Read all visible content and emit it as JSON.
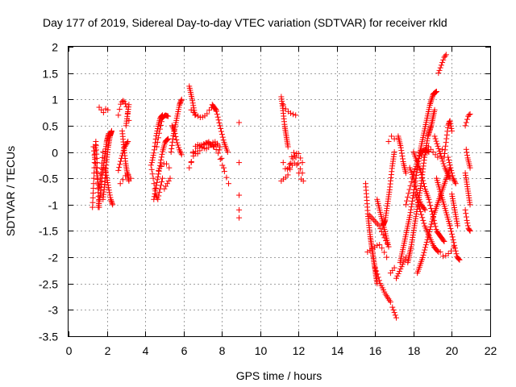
{
  "chart_data": {
    "type": "scatter",
    "title": "Day 177 of 2019, Sidereal Day-to-day VTEC variation (SDTVAR) for receiver rkld",
    "xlabel": "GPS time / hours",
    "ylabel": "SDTVAR / TECUs",
    "xlim": [
      0,
      22
    ],
    "ylim": [
      -3.5,
      2
    ],
    "xticks": [
      "0",
      "2",
      "4",
      "6",
      "8",
      "10",
      "12",
      "14",
      "16",
      "18",
      "20",
      "22"
    ],
    "yticks": [
      "2",
      "1.5",
      "1",
      "0.5",
      "0",
      "-0.5",
      "-1",
      "-1.5",
      "-2",
      "-2.5",
      "-3",
      "-3.5"
    ],
    "grid": true,
    "marker": "+",
    "marker_color": "#ff0000",
    "segments": [
      {
        "x0": 1.25,
        "x1": 1.6,
        "y": [
          -1.05,
          -0.6,
          -0.1,
          0.2,
          -0.2,
          -0.7,
          -1.05
        ]
      },
      {
        "x0": 1.3,
        "x1": 1.8,
        "y": [
          0.1,
          -0.2,
          -0.5,
          -0.7,
          -0.4,
          0.0
        ]
      },
      {
        "x0": 1.55,
        "x1": 2.1,
        "y": [
          -1.05,
          -0.8,
          -0.4,
          -0.1,
          0.2,
          0.35
        ]
      },
      {
        "x0": 1.6,
        "x1": 2.05,
        "y": [
          0.85,
          0.8,
          0.75,
          0.82,
          0.8
        ]
      },
      {
        "x0": 1.8,
        "x1": 2.25,
        "y": [
          -0.9,
          -0.6,
          -0.2,
          0.1,
          0.3,
          0.4
        ]
      },
      {
        "x0": 1.9,
        "x1": 2.3,
        "y": [
          -0.3,
          -0.5,
          -0.7,
          -0.9,
          -1.0
        ]
      },
      {
        "x0": 2.6,
        "x1": 3.15,
        "y": [
          0.7,
          0.9,
          0.98,
          0.95,
          0.85,
          0.6
        ]
      },
      {
        "x0": 2.6,
        "x1": 3.1,
        "y": [
          -0.35,
          -0.1,
          0.1,
          0.2
        ]
      },
      {
        "x0": 2.7,
        "x1": 3.25,
        "y": [
          -0.6,
          -0.5,
          -0.4,
          -0.5
        ]
      },
      {
        "x0": 2.8,
        "x1": 3.15,
        "y": [
          0.4,
          0.1,
          -0.2,
          -0.4,
          -0.55
        ]
      },
      {
        "x0": 3.0,
        "x1": 3.15,
        "y": [
          0.5,
          0.7,
          0.9
        ]
      },
      {
        "x0": 4.3,
        "x1": 4.9,
        "y": [
          -0.25,
          -0.5,
          -0.8,
          -0.9,
          -0.7,
          -0.5
        ]
      },
      {
        "x0": 4.35,
        "x1": 4.9,
        "y": [
          -0.2,
          0.0,
          0.3,
          0.5,
          0.65,
          0.7
        ]
      },
      {
        "x0": 4.45,
        "x1": 5.2,
        "y": [
          -0.9,
          -0.6,
          -0.3,
          0.0,
          0.2,
          0.25
        ]
      },
      {
        "x0": 4.6,
        "x1": 5.2,
        "y": [
          0.1,
          0.4,
          0.65,
          0.7,
          0.68
        ]
      },
      {
        "x0": 4.7,
        "x1": 5.25,
        "y": [
          -0.35,
          -0.25,
          -0.2,
          -0.3
        ]
      },
      {
        "x0": 5.0,
        "x1": 5.3,
        "y": [
          -0.7,
          -0.6,
          -0.5
        ]
      },
      {
        "x0": 5.35,
        "x1": 5.9,
        "y": [
          0.0,
          0.3,
          0.5,
          0.7,
          0.9,
          1.0
        ]
      },
      {
        "x0": 5.4,
        "x1": 5.9,
        "y": [
          0.5,
          0.4,
          0.2,
          0.05,
          -0.05
        ]
      },
      {
        "x0": 6.3,
        "x1": 6.6,
        "y": [
          1.25,
          1.0,
          0.7
        ]
      },
      {
        "x0": 6.3,
        "x1": 8.35,
        "y": [
          -0.3,
          -0.1,
          0.05,
          0.12,
          0.15,
          0.18,
          0.15,
          0.1,
          0.0,
          -0.2,
          -0.4,
          -0.6
        ]
      },
      {
        "x0": 6.4,
        "x1": 8.1,
        "y": [
          -0.2,
          0.1,
          0.15,
          0.1,
          0.05,
          0.1,
          0.18,
          0.2,
          0.0,
          -0.3
        ]
      },
      {
        "x0": 6.5,
        "x1": 7.9,
        "y": [
          0.0,
          -0.05,
          0.05,
          0.15,
          0.2,
          0.1,
          0.15,
          0.1
        ]
      },
      {
        "x0": 6.4,
        "x1": 7.7,
        "y": [
          0.8,
          0.7,
          0.65,
          0.7,
          0.85,
          0.8
        ]
      },
      {
        "x0": 7.5,
        "x1": 8.3,
        "y": [
          0.9,
          0.8,
          0.5,
          0.2,
          0.0
        ]
      },
      {
        "x0": 8.9,
        "x1": 8.9,
        "y": [
          0.56,
          -0.2,
          -0.82,
          -1.1,
          -1.25
        ]
      },
      {
        "x0": 11.1,
        "x1": 11.45,
        "y": [
          1.05,
          0.8,
          0.5,
          0.3,
          0.1
        ]
      },
      {
        "x0": 11.2,
        "x1": 11.85,
        "y": [
          0.9,
          0.8,
          0.75,
          0.72,
          0.7
        ]
      },
      {
        "x0": 11.1,
        "x1": 12.25,
        "y": [
          -0.55,
          -0.5,
          -0.45,
          -0.3,
          -0.2,
          -0.25,
          -0.5,
          -0.55
        ]
      },
      {
        "x0": 11.2,
        "x1": 12.2,
        "y": [
          -0.2,
          -0.35,
          -0.3,
          -0.1,
          0.0,
          -0.15,
          -0.3,
          -0.4
        ]
      },
      {
        "x0": 11.5,
        "x1": 12.2,
        "y": [
          -0.3,
          -0.1,
          0.0,
          -0.2
        ]
      },
      {
        "x0": 15.5,
        "x1": 16.1,
        "y": [
          -0.6,
          -1.2,
          -1.6,
          -1.9,
          -2.2,
          -2.5
        ]
      },
      {
        "x0": 15.6,
        "x1": 16.6,
        "y": [
          -1.9,
          -1.85,
          -1.8,
          -1.75,
          -1.85,
          -2.0
        ]
      },
      {
        "x0": 15.7,
        "x1": 16.7,
        "y": [
          -1.2,
          -1.3,
          -1.4,
          -1.6,
          -1.8
        ]
      },
      {
        "x0": 16.0,
        "x1": 16.8,
        "y": [
          -2.2,
          -2.5,
          -2.7,
          -2.85
        ]
      },
      {
        "x0": 16.1,
        "x1": 16.7,
        "y": [
          -0.9,
          -1.2,
          -1.5,
          -1.8
        ]
      },
      {
        "x0": 16.4,
        "x1": 17.0,
        "y": [
          -1.4,
          -1.3,
          -1.0,
          -0.7,
          -0.3,
          0.0
        ]
      },
      {
        "x0": 16.7,
        "x1": 17.0,
        "y": [
          0.2,
          0.3,
          0.25
        ]
      },
      {
        "x0": 16.8,
        "x1": 17.0,
        "y": [
          -2.3,
          -2.25,
          -2.2
        ]
      },
      {
        "x0": 16.9,
        "x1": 17.1,
        "y": [
          -2.95,
          -3.05,
          -3.15
        ]
      },
      {
        "x0": 17.1,
        "x1": 17.6,
        "y": [
          -2.4,
          -2.3,
          -2.2,
          -2.1,
          -2.0
        ]
      },
      {
        "x0": 17.2,
        "x1": 17.6,
        "y": [
          0.3,
          0.1,
          -0.2,
          -0.4
        ]
      },
      {
        "x0": 17.3,
        "x1": 19.2,
        "y": [
          -2.1,
          -1.8,
          -1.5,
          -1.2,
          -0.8,
          -0.4,
          0.0,
          0.3,
          0.6,
          0.9,
          1.1,
          1.15
        ]
      },
      {
        "x0": 17.6,
        "x1": 18.8,
        "y": [
          -1.0,
          -0.7,
          -0.4,
          -0.2,
          0.0,
          0.05,
          0.0
        ]
      },
      {
        "x0": 17.7,
        "x1": 19.1,
        "y": [
          -2.1,
          -1.8,
          -1.4,
          -1.0,
          -0.6,
          -0.1,
          0.3,
          0.5,
          0.8
        ]
      },
      {
        "x0": 17.8,
        "x1": 18.6,
        "y": [
          -0.3,
          -0.5,
          -0.8,
          -1.0,
          -1.1
        ]
      },
      {
        "x0": 18.0,
        "x1": 19.6,
        "y": [
          0.0,
          -0.2,
          -0.4,
          -0.7,
          -0.9,
          -1.2,
          -1.5,
          -1.6,
          -1.7
        ]
      },
      {
        "x0": 18.1,
        "x1": 19.3,
        "y": [
          -0.8,
          -1.1,
          -1.4,
          -1.6,
          -1.8,
          -1.9
        ]
      },
      {
        "x0": 18.2,
        "x1": 19.9,
        "y": [
          -2.3,
          -2.0,
          -1.6,
          -1.2,
          -0.9,
          -0.6,
          -0.3
        ]
      },
      {
        "x0": 18.3,
        "x1": 19.5,
        "y": [
          0.0,
          -0.1,
          0.1,
          0.0,
          -0.1,
          0.05
        ]
      },
      {
        "x0": 19.3,
        "x1": 19.7,
        "y": [
          1.5,
          1.6,
          1.7,
          1.8,
          1.85
        ]
      },
      {
        "x0": 19.1,
        "x1": 19.9,
        "y": [
          0.3,
          0.0,
          -0.3,
          -0.5
        ]
      },
      {
        "x0": 19.2,
        "x1": 19.9,
        "y": [
          -0.5,
          -0.8,
          -1.1,
          -1.4
        ]
      },
      {
        "x0": 19.4,
        "x1": 20.1,
        "y": [
          -1.9,
          -2.0,
          -1.95,
          -1.9,
          -1.8
        ]
      },
      {
        "x0": 19.6,
        "x1": 20.0,
        "y": [
          -0.1,
          0.2,
          0.5,
          0.6,
          0.4
        ]
      },
      {
        "x0": 19.8,
        "x1": 20.2,
        "y": [
          -0.1,
          -0.3,
          -0.5,
          -0.6
        ]
      },
      {
        "x0": 19.9,
        "x1": 20.4,
        "y": [
          -1.4,
          -1.6,
          -1.8,
          -2.0,
          -2.05
        ]
      },
      {
        "x0": 20.0,
        "x1": 20.3,
        "y": [
          -0.8,
          -1.0,
          -1.2,
          -1.4
        ]
      },
      {
        "x0": 20.7,
        "x1": 20.95,
        "y": [
          0.5,
          0.6,
          0.7,
          0.72
        ]
      },
      {
        "x0": 20.7,
        "x1": 20.95,
        "y": [
          -0.4,
          -0.6,
          -0.8,
          -1.0
        ]
      },
      {
        "x0": 20.7,
        "x1": 20.95,
        "y": [
          -1.1,
          -1.3,
          -1.45,
          -1.5
        ]
      },
      {
        "x0": 20.75,
        "x1": 20.95,
        "y": [
          0.05,
          -0.1,
          -0.2,
          -0.3
        ]
      }
    ]
  }
}
